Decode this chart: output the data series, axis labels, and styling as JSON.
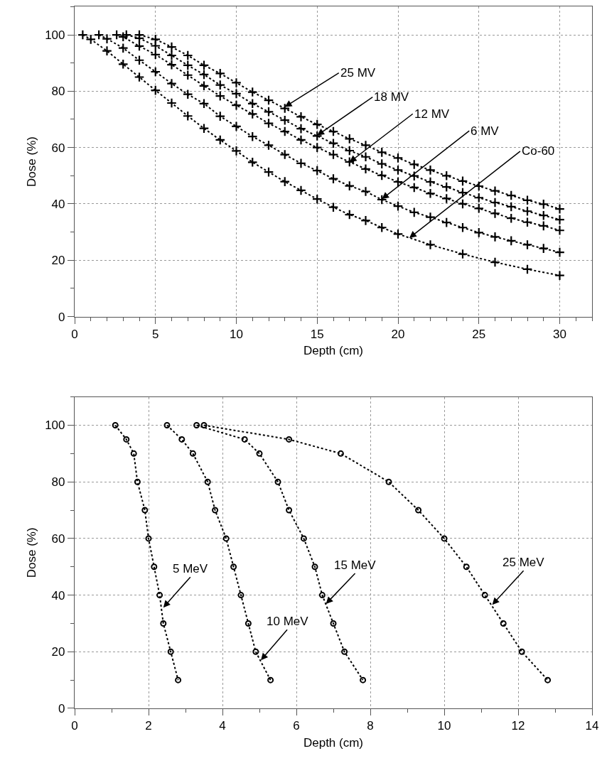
{
  "chart_data": [
    {
      "type": "line",
      "xlabel": "Depth (cm)",
      "ylabel": "Dose (%)",
      "xlim": [
        0,
        32
      ],
      "ylim": [
        0,
        110
      ],
      "xticks": [
        0,
        {
          "value": 1,
          "label": null
        },
        {
          "value": 2,
          "label": null
        },
        {
          "value": 3,
          "label": null
        },
        {
          "value": 4,
          "label": null
        },
        5,
        {
          "value": 6,
          "label": null
        },
        {
          "value": 7,
          "label": null
        },
        {
          "value": 8,
          "label": null
        },
        {
          "value": 9,
          "label": null
        },
        10,
        {
          "value": 11,
          "label": null
        },
        {
          "value": 12,
          "label": null
        },
        {
          "value": 13,
          "label": null
        },
        {
          "value": 14,
          "label": null
        },
        15,
        {
          "value": 16,
          "label": null
        },
        {
          "value": 17,
          "label": null
        },
        {
          "value": 18,
          "label": null
        },
        {
          "value": 19,
          "label": null
        },
        20,
        {
          "value": 21,
          "label": null
        },
        {
          "value": 22,
          "label": null
        },
        {
          "value": 23,
          "label": null
        },
        {
          "value": 24,
          "label": null
        },
        25,
        {
          "value": 26,
          "label": null
        },
        {
          "value": 27,
          "label": null
        },
        {
          "value": 28,
          "label": null
        },
        {
          "value": 29,
          "label": null
        },
        30,
        {
          "value": 31,
          "label": null
        },
        {
          "value": 32,
          "label": null
        }
      ],
      "yticks": [
        0,
        {
          "value": 10,
          "label": null
        },
        20,
        {
          "value": 30,
          "label": null
        },
        40,
        {
          "value": 50,
          "label": null
        },
        60,
        {
          "value": 70,
          "label": null
        },
        80,
        {
          "value": 90,
          "label": null
        },
        100,
        {
          "value": 110,
          "label": null
        }
      ],
      "grid": true,
      "marker": "cross",
      "line_style": "dotted",
      "series": [
        {
          "color": "#000000",
          "x": [
            4,
            5,
            6,
            7,
            8,
            9,
            10,
            11,
            12,
            13,
            14,
            15,
            16,
            17,
            18,
            19,
            20,
            21,
            22,
            23,
            24,
            25,
            26,
            27,
            28,
            29,
            30
          ],
          "values": [
            100,
            98.4,
            95.7,
            92.7,
            89.2,
            86.3,
            83.0,
            79.7,
            76.8,
            73.9,
            70.9,
            68.2,
            65.7,
            63.1,
            60.8,
            58.3,
            56.3,
            54.0,
            52.0,
            50.0,
            48.1,
            46.3,
            44.6,
            43.0,
            41.3,
            39.9,
            38.2
          ]
        },
        {
          "color": "#000000",
          "x": [
            3.2,
            4,
            5,
            6,
            7,
            8,
            9,
            10,
            11,
            12,
            13,
            14,
            15,
            16,
            17,
            18,
            19,
            20,
            21,
            22,
            23,
            24,
            25,
            26,
            27,
            28,
            29,
            30
          ],
          "values": [
            100,
            98.8,
            96.1,
            92.7,
            89.2,
            85.9,
            82.2,
            79.1,
            75.6,
            72.7,
            69.7,
            66.7,
            64.1,
            61.5,
            58.9,
            56.7,
            54.2,
            52.0,
            49.9,
            47.8,
            46.0,
            44.0,
            42.2,
            40.5,
            39.0,
            37.4,
            35.9,
            34.4
          ]
        },
        {
          "color": "#000000",
          "x": [
            2.6,
            3,
            4,
            5,
            6,
            7,
            8,
            9,
            10,
            11,
            12,
            13,
            14,
            15,
            16,
            17,
            18,
            19,
            20,
            21,
            22,
            23,
            24,
            25,
            26,
            27,
            28,
            29,
            30
          ],
          "values": [
            100,
            99.3,
            96.0,
            93.0,
            89.4,
            85.7,
            81.9,
            78.3,
            75.0,
            71.9,
            68.6,
            65.7,
            62.7,
            60.0,
            57.5,
            54.9,
            52.4,
            50.1,
            47.8,
            45.8,
            43.7,
            41.9,
            40.0,
            38.4,
            36.6,
            34.9,
            33.5,
            32.2,
            30.6
          ]
        },
        {
          "color": "#000000",
          "x": [
            1.5,
            2,
            3,
            4,
            5,
            6,
            7,
            8,
            9,
            10,
            11,
            12,
            13,
            14,
            15,
            16,
            17,
            18,
            19,
            20,
            21,
            22,
            23,
            24,
            25,
            26,
            27,
            28,
            29,
            30
          ],
          "values": [
            100,
            98.6,
            95.3,
            91.0,
            86.9,
            82.7,
            78.9,
            75.6,
            71.1,
            67.5,
            63.9,
            60.8,
            57.5,
            54.4,
            51.8,
            48.9,
            46.4,
            44.4,
            41.5,
            39.2,
            37.0,
            35.3,
            33.4,
            31.6,
            29.8,
            28.3,
            26.9,
            25.5,
            24.2,
            22.8
          ]
        },
        {
          "color": "#000000",
          "x": [
            0.5,
            1,
            2,
            3,
            4,
            5,
            6,
            7,
            8,
            9,
            10,
            11,
            12,
            13,
            14,
            15,
            16,
            17,
            18,
            19,
            20,
            22,
            24,
            26,
            28,
            30
          ],
          "values": [
            100,
            98.4,
            94.3,
            89.6,
            85.0,
            80.3,
            75.8,
            71.2,
            66.8,
            62.7,
            58.8,
            54.8,
            51.3,
            47.9,
            44.8,
            41.7,
            38.8,
            36.2,
            34.1,
            31.6,
            29.3,
            25.5,
            22.2,
            19.3,
            16.8,
            14.6
          ]
        }
      ],
      "annotations": [
        {
          "text": "25 MV",
          "x": 13,
          "y": 74.4
        },
        {
          "text": "18 MV",
          "x": 15,
          "y": 64.3
        },
        {
          "text": "12 MV",
          "x": 17,
          "y": 54.8
        },
        {
          "text": "6 MV",
          "x": 19,
          "y": 41.7
        },
        {
          "text": "Co-60",
          "x": 20.7,
          "y": 27.9
        }
      ]
    },
    {
      "type": "line",
      "xlabel": "Depth (cm)",
      "ylabel": "Dose (%)",
      "xlim": [
        0,
        14
      ],
      "ylim": [
        0,
        110
      ],
      "xticks": [
        0,
        {
          "value": 1,
          "label": null
        },
        2,
        {
          "value": 3,
          "label": null
        },
        4,
        {
          "value": 5,
          "label": null
        },
        6,
        {
          "value": 7,
          "label": null
        },
        8,
        {
          "value": 9,
          "label": null
        },
        10,
        {
          "value": 11,
          "label": null
        },
        12,
        {
          "value": 13,
          "label": null
        },
        14
      ],
      "yticks": [
        0,
        {
          "value": 10,
          "label": null
        },
        20,
        {
          "value": 30,
          "label": null
        },
        40,
        {
          "value": 50,
          "label": null
        },
        60,
        {
          "value": 70,
          "label": null
        },
        80,
        {
          "value": 90,
          "label": null
        },
        100,
        {
          "value": 110,
          "label": null
        }
      ],
      "grid": true,
      "marker": "circle",
      "line_style": "dotted",
      "series": [
        {
          "color": "#000000",
          "x": [
            1.1,
            1.4,
            1.6,
            1.7,
            1.9,
            2.0,
            2.15,
            2.3,
            2.4,
            2.6,
            2.8
          ],
          "values": [
            100,
            95,
            90,
            80,
            70,
            60,
            50,
            40,
            30,
            20,
            10
          ]
        },
        {
          "color": "#000000",
          "x": [
            2.5,
            2.9,
            3.2,
            3.6,
            3.8,
            4.1,
            4.3,
            4.5,
            4.7,
            4.9,
            5.3
          ],
          "values": [
            100,
            95,
            90,
            80,
            70,
            60,
            50,
            40,
            30,
            20,
            10
          ]
        },
        {
          "color": "#000000",
          "x": [
            3.3,
            4.6,
            5.0,
            5.5,
            5.8,
            6.2,
            6.5,
            6.7,
            7.0,
            7.3,
            7.8
          ],
          "values": [
            100,
            95,
            90,
            80,
            70,
            60,
            50,
            40,
            30,
            20,
            10
          ]
        },
        {
          "color": "#000000",
          "x": [
            3.5,
            5.8,
            7.2,
            8.5,
            9.3,
            10.0,
            10.6,
            11.1,
            11.6,
            12.1,
            12.8
          ],
          "values": [
            100,
            95,
            90,
            80,
            70,
            60,
            50,
            40,
            30,
            20,
            10
          ]
        }
      ],
      "annotations": [
        {
          "text": "5 MeV",
          "x": 2.4,
          "y": 35.6
        },
        {
          "text": "10 MeV",
          "x": 5.04,
          "y": 17
        },
        {
          "text": "15 MeV",
          "x": 6.8,
          "y": 36.9
        },
        {
          "text": "25 MeV",
          "x": 11.3,
          "y": 36.6
        }
      ]
    }
  ]
}
